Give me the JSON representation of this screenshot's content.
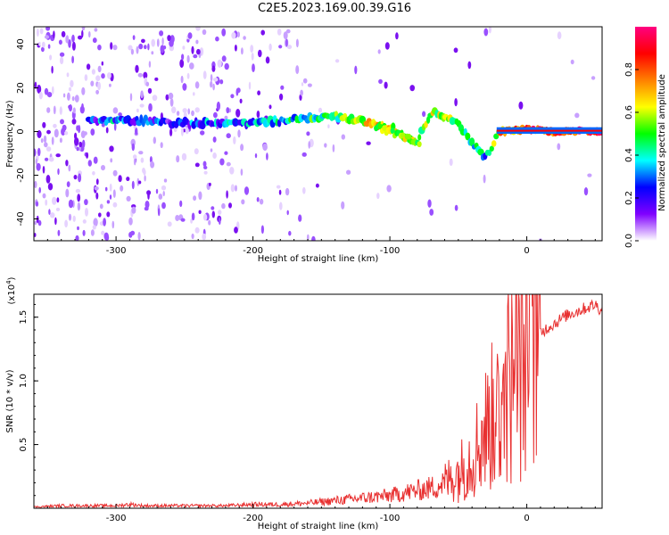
{
  "title": "C2E5.2023.169.00.39.G16",
  "chart_data": [
    {
      "type": "heatmap",
      "title": "C2E5.2023.169.00.39.G16",
      "xlabel": "Height of straight line (km)",
      "ylabel": "Frequency (Hz)",
      "xlim": [
        -360,
        55
      ],
      "ylim": [
        -50,
        48
      ],
      "xticks": [
        -300,
        -200,
        -100,
        0
      ],
      "yticks": [
        -40,
        -20,
        0,
        20,
        40
      ],
      "colorbar": {
        "label": "Normalized spectral amplitude",
        "range": [
          0,
          1
        ],
        "ticks": [
          0.0,
          0.2,
          0.4,
          0.6,
          0.8
        ],
        "colors": [
          "#ffffff",
          "#8000ff",
          "#0000ff",
          "#00ffff",
          "#00ff00",
          "#ffff00",
          "#ff8000",
          "#ff0000",
          "#ff0080"
        ]
      },
      "ridge": {
        "x": [
          -320,
          -300,
          -280,
          -260,
          -240,
          -220,
          -200,
          -180,
          -160,
          -140,
          -120,
          -100,
          -80,
          -70,
          -60,
          -50,
          -40,
          -30,
          -20,
          0,
          20,
          55
        ],
        "frequency": [
          5,
          5,
          5,
          4,
          4,
          4,
          4,
          5,
          6,
          7,
          5,
          2,
          -5,
          9,
          7,
          3,
          -5,
          -12,
          0,
          1,
          0,
          0
        ],
        "amplitude": [
          0.25,
          0.3,
          0.25,
          0.2,
          0.25,
          0.3,
          0.3,
          0.35,
          0.4,
          0.5,
          0.6,
          0.65,
          0.5,
          0.6,
          0.5,
          0.5,
          0.4,
          0.35,
          0.7,
          0.8,
          0.85,
          0.9
        ]
      }
    },
    {
      "type": "line",
      "xlabel": "Height of straight line (km)",
      "ylabel": "SNR (10 * v/v)",
      "yscale_label": "(x10",
      "yscale_exp": "4",
      "yscale_close": ")",
      "xlim": [
        -360,
        55
      ],
      "ylim": [
        0,
        1.68
      ],
      "xticks": [
        -300,
        -200,
        -100,
        0
      ],
      "yticks": [
        0.5,
        1.0,
        1.5
      ],
      "ytick_labels": [
        "0.5",
        "1.0",
        "1.5"
      ],
      "series": [
        {
          "name": "SNR",
          "color": "#e83030",
          "x": [
            -360,
            -340,
            -320,
            -300,
            -290,
            -280,
            -260,
            -240,
            -220,
            -200,
            -180,
            -160,
            -140,
            -120,
            -110,
            -100,
            -90,
            -80,
            -70,
            -60,
            -55,
            -50,
            -45,
            -40,
            -35,
            -30,
            -25,
            -20,
            -15,
            -10,
            -5,
            0,
            5,
            10,
            20,
            30,
            40,
            50,
            55
          ],
          "values": [
            0.01,
            0.02,
            0.02,
            0.02,
            0.03,
            0.02,
            0.02,
            0.02,
            0.02,
            0.03,
            0.03,
            0.04,
            0.06,
            0.08,
            0.09,
            0.1,
            0.12,
            0.14,
            0.16,
            0.2,
            0.24,
            0.28,
            0.34,
            0.42,
            0.52,
            0.62,
            0.72,
            0.8,
            0.95,
            1.02,
            1.1,
            1.2,
            1.3,
            1.38,
            1.45,
            1.52,
            1.56,
            1.6,
            1.55
          ]
        }
      ]
    }
  ]
}
